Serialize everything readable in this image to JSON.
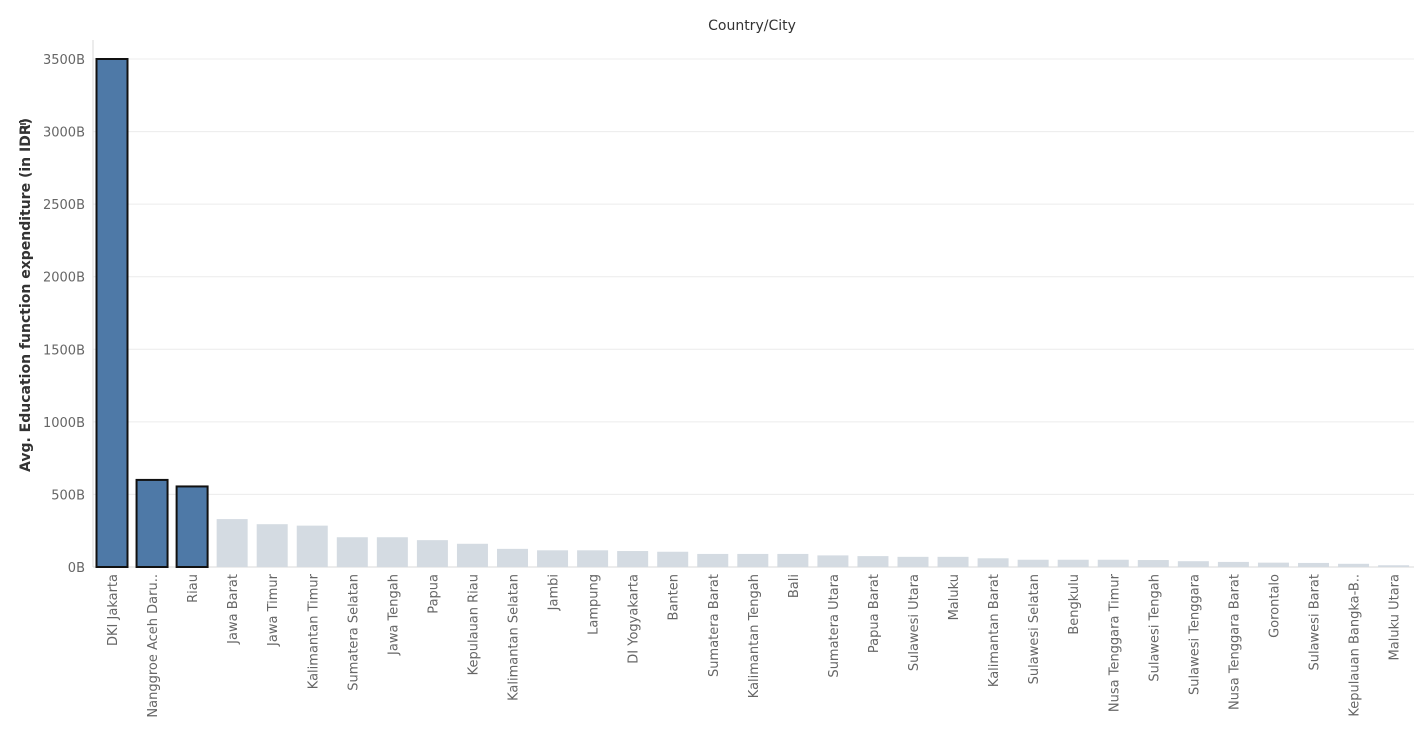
{
  "chart_data": {
    "type": "bar",
    "title": "Country/City",
    "ylabel": "Avg. Education function expenditure (in IDR)",
    "ylabel_icon": "sort-descending-icon",
    "ylim": [
      0,
      3500
    ],
    "yticks": [
      0,
      500,
      1000,
      1500,
      2000,
      2500,
      3000,
      3500
    ],
    "ytick_labels": [
      "0B",
      "500B",
      "1000B",
      "1500B",
      "2000B",
      "2500B",
      "3000B",
      "3500B"
    ],
    "grid": true,
    "categories": [
      "DKI Jakarta",
      "Nanggroe Aceh Daru..",
      "Riau",
      "Jawa Barat",
      "Jawa Timur",
      "Kalimantan Timur",
      "Sumatera Selatan",
      "Jawa Tengah",
      "Papua",
      "Kepulauan Riau",
      "Kalimantan Selatan",
      "Jambi",
      "Lampung",
      "DI Yogyakarta",
      "Banten",
      "Sumatera Barat",
      "Kalimantan Tengah",
      "Bali",
      "Sumatera Utara",
      "Papua Barat",
      "Sulawesi Utara",
      "Maluku",
      "Kalimantan Barat",
      "Sulawesi Selatan",
      "Bengkulu",
      "Nusa Tenggara Timur",
      "Sulawesi Tengah",
      "Sulawesi Tenggara",
      "Nusa Tenggara Barat",
      "Gorontalo",
      "Sulawesi Barat",
      "Kepulauan Bangka-B..",
      "Maluku Utara"
    ],
    "values": [
      3500,
      600,
      555,
      330,
      295,
      285,
      205,
      205,
      185,
      160,
      125,
      115,
      115,
      110,
      105,
      90,
      90,
      90,
      80,
      75,
      70,
      70,
      60,
      50,
      50,
      50,
      48,
      40,
      35,
      30,
      28,
      22,
      12
    ],
    "highlighted": [
      0,
      1,
      2
    ],
    "colors": {
      "highlight": "#4e79a7",
      "highlight_border": "#111111",
      "muted": "#d4dbe2"
    }
  }
}
